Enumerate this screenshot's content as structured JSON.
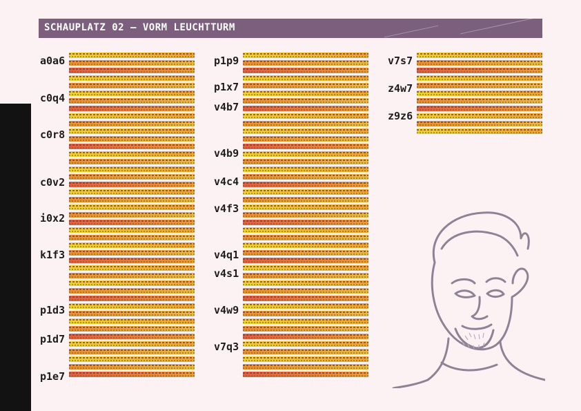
{
  "header": {
    "title": "SCHAUPLATZ 02 — VORM LEUCHTTURM"
  },
  "columns": [
    {
      "codes": [
        "a0a6",
        "c0q4",
        "c0r8",
        "c0v2",
        "i0x2",
        "k1f3",
        "p1d3",
        "p1d7",
        "p1e7"
      ]
    },
    {
      "codes": [
        "p1p9",
        "p1x7",
        "v4b7",
        "v4b9",
        "v4c4",
        "v4f3",
        "v4q1",
        "v4s1",
        "v4w9",
        "v7q3"
      ]
    },
    {
      "codes": [
        "v7s7",
        "z4w7",
        "z9z6"
      ]
    }
  ],
  "illustration": {
    "name": "character-sketch-portrait",
    "stroke_color": "#8f8295"
  },
  "colors": {
    "header_bg": "#7b5f7d",
    "page_bg": "#fcf1f3",
    "side_tab": "#121212",
    "text_highlight": [
      "#f5d02a",
      "#f08d2b",
      "#ea5a3a"
    ]
  }
}
